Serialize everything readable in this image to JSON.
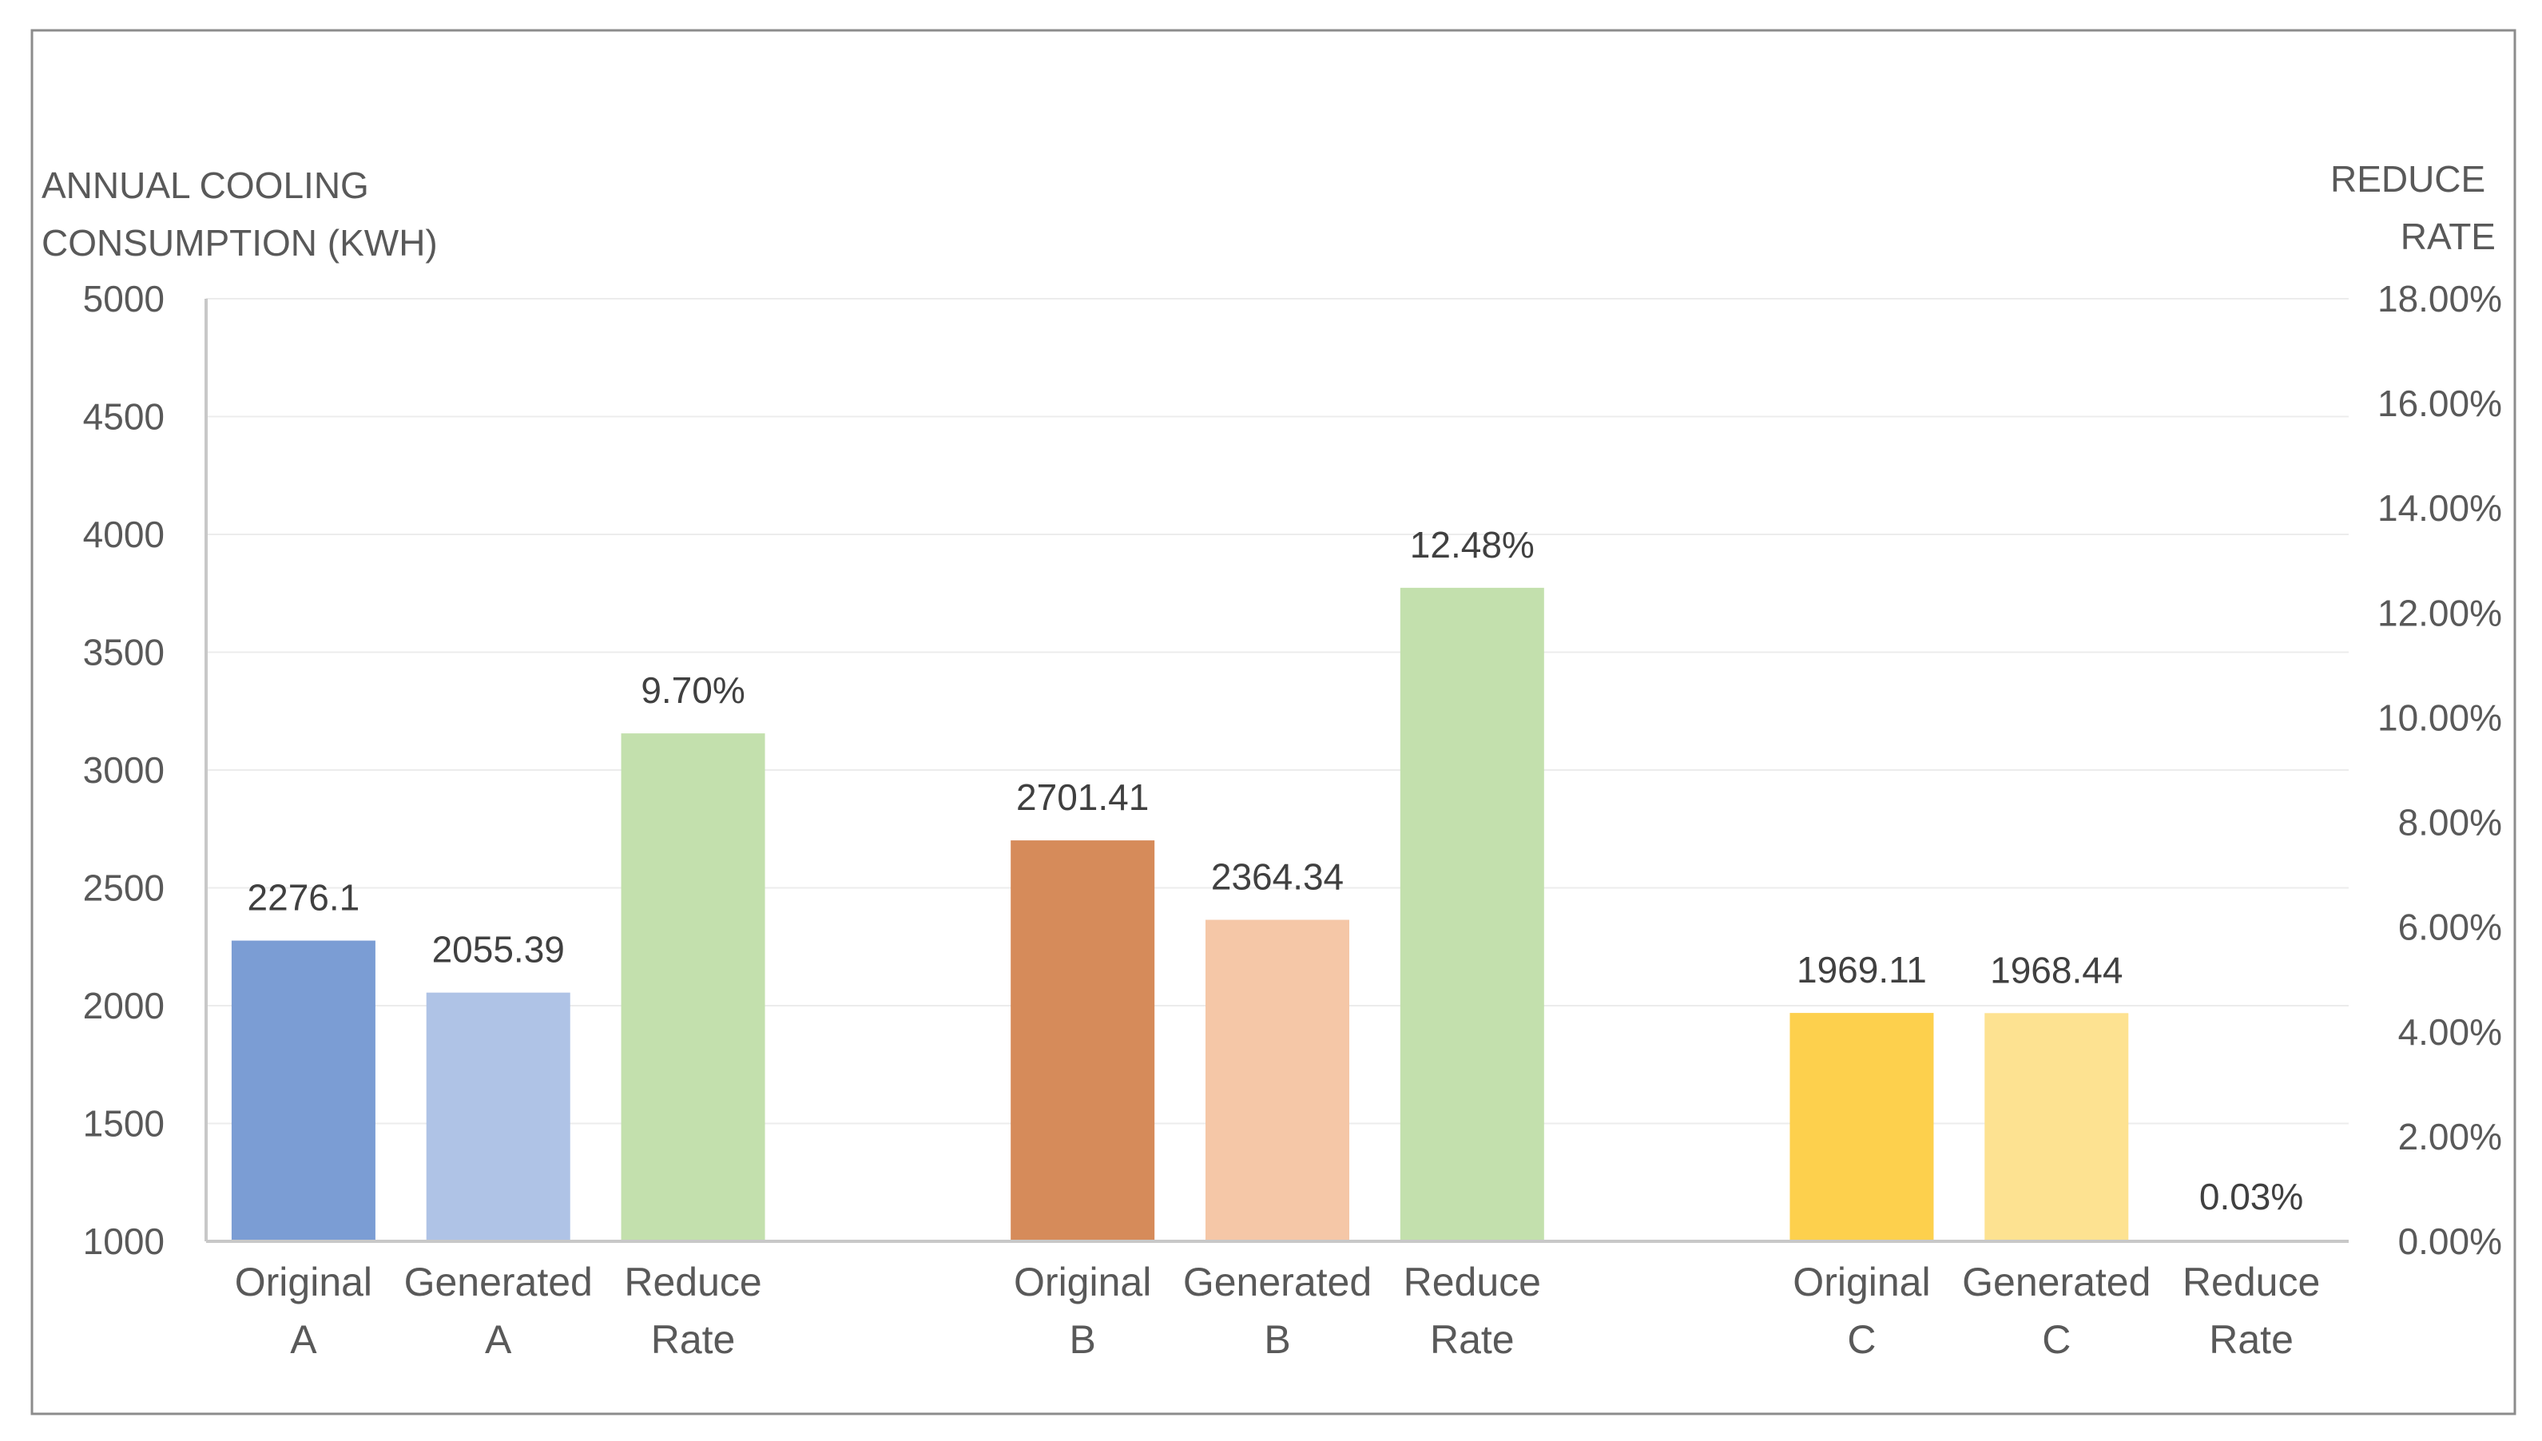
{
  "chart_data": {
    "type": "bar",
    "y_axis_title_lines": [
      "ANNUAL COOLING",
      "CONSUMPTION (KWH)"
    ],
    "y2_axis_title_lines": [
      "REDUCE",
      "RATE"
    ],
    "y_ticks": [
      "5000",
      "4500",
      "4000",
      "3500",
      "3000",
      "2500",
      "2000",
      "1500",
      "1000"
    ],
    "y2_ticks": [
      "18.00%",
      "16.00%",
      "14.00%",
      "12.00%",
      "10.00%",
      "8.00%",
      "6.00%",
      "4.00%",
      "2.00%",
      "0.00%"
    ],
    "ylim": [
      1000,
      5000
    ],
    "y2lim": [
      0,
      0.18
    ],
    "grid": true,
    "groups": [
      {
        "bars": [
          {
            "label_lines": [
              "Original",
              "A"
            ],
            "value": 2276.1,
            "value_label": "2276.1",
            "axis": "primary",
            "color": "#7b9dd4"
          },
          {
            "label_lines": [
              "Generated",
              "A"
            ],
            "value": 2055.39,
            "value_label": "2055.39",
            "axis": "primary",
            "color": "#afc3e6"
          },
          {
            "label_lines": [
              "Reduce",
              "Rate"
            ],
            "value": 0.097,
            "value_label": "9.70%",
            "axis": "secondary",
            "color": "#c3e0ad"
          }
        ]
      },
      {
        "bars": [
          {
            "label_lines": [
              "Original",
              "B"
            ],
            "value": 2701.41,
            "value_label": "2701.41",
            "axis": "primary",
            "color": "#d68b5a"
          },
          {
            "label_lines": [
              "Generated",
              "B"
            ],
            "value": 2364.34,
            "value_label": "2364.34",
            "axis": "primary",
            "color": "#f5c7a7"
          },
          {
            "label_lines": [
              "Reduce",
              "Rate"
            ],
            "value": 0.1248,
            "value_label": "12.48%",
            "axis": "secondary",
            "color": "#c3e0ad"
          }
        ]
      },
      {
        "bars": [
          {
            "label_lines": [
              "Original",
              "C"
            ],
            "value": 1969.11,
            "value_label": "1969.11",
            "axis": "primary",
            "color": "#fdd04d"
          },
          {
            "label_lines": [
              "Generated",
              "C"
            ],
            "value": 1968.44,
            "value_label": "1968.44",
            "axis": "primary",
            "color": "#fde291"
          },
          {
            "label_lines": [
              "Reduce",
              "Rate"
            ],
            "value": 0.0003,
            "value_label": "0.03%",
            "axis": "secondary",
            "color": "#c3e0ad"
          }
        ]
      }
    ]
  }
}
